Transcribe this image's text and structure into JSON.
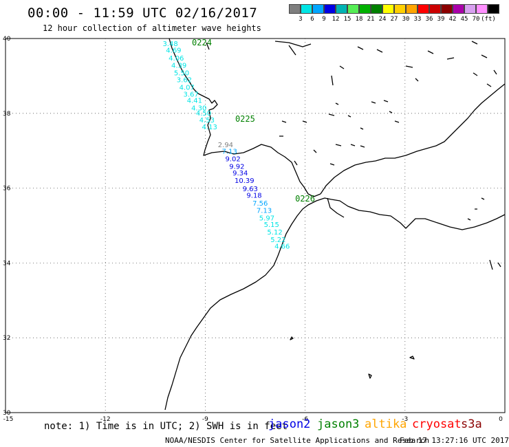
{
  "header": {
    "title": "00:00 - 11:59 UTC 02/16/2017",
    "subtitle": "12 hour collection of altimeter wave heights"
  },
  "colorbar": {
    "swatches": [
      "#7f7f7f",
      "#00e5e5",
      "#00a6ff",
      "#0000e5",
      "#00b3b3",
      "#55ee55",
      "#00b200",
      "#008000",
      "#ffff00",
      "#ffd000",
      "#ffa500",
      "#ff0000",
      "#cc0000",
      "#8b0000",
      "#aa00aa",
      "#d8a0f0",
      "#ff90ff",
      "#000000"
    ],
    "labels": [
      "3",
      "6",
      "9",
      "12",
      "15",
      "18",
      "21",
      "24",
      "27",
      "30",
      "33",
      "36",
      "39",
      "42",
      "45",
      "70"
    ],
    "unit": "(ft)"
  },
  "map": {
    "lon_min": -15,
    "lon_max": 0,
    "lat_min": 30,
    "lat_max": 40,
    "x_ticks": [
      {
        "lon": -15,
        "label": "-15"
      },
      {
        "lon": -12,
        "label": "-12"
      },
      {
        "lon": -9,
        "label": "-9"
      },
      {
        "lon": -6,
        "label": "-6"
      },
      {
        "lon": -3,
        "label": "-3"
      },
      {
        "lon": 0,
        "label": "0"
      }
    ],
    "y_ticks": [
      {
        "lat": 40,
        "label": "40"
      },
      {
        "lat": 38,
        "label": "38"
      },
      {
        "lat": 36,
        "label": "36"
      },
      {
        "lat": 34,
        "label": "34"
      },
      {
        "lat": 32,
        "label": "32"
      },
      {
        "lat": 30,
        "label": "30"
      }
    ],
    "pass_times": [
      {
        "lon": -9.4,
        "lat": 39.82,
        "text": "0224",
        "color": "#008000"
      },
      {
        "lon": -8.1,
        "lat": 37.78,
        "text": "0225",
        "color": "#008000"
      },
      {
        "lon": -6.3,
        "lat": 35.64,
        "text": "0226",
        "color": "#008000"
      }
    ],
    "swh": [
      {
        "lon": -10.28,
        "lat": 39.8,
        "text": "3.48",
        "color": "#00e5e5"
      },
      {
        "lon": -10.18,
        "lat": 39.62,
        "text": "4.69",
        "color": "#00e5e5"
      },
      {
        "lon": -10.1,
        "lat": 39.41,
        "text": "4.06",
        "color": "#00e5e5"
      },
      {
        "lon": -10.02,
        "lat": 39.22,
        "text": "4.39",
        "color": "#00e5e5"
      },
      {
        "lon": -9.94,
        "lat": 39.02,
        "text": "5.50",
        "color": "#00e5e5"
      },
      {
        "lon": -9.86,
        "lat": 38.83,
        "text": "3.62",
        "color": "#00e5e5"
      },
      {
        "lon": -9.78,
        "lat": 38.63,
        "text": "4.07",
        "color": "#00e5e5"
      },
      {
        "lon": -9.66,
        "lat": 38.45,
        "text": "3.67",
        "color": "#00e5e5"
      },
      {
        "lon": -9.55,
        "lat": 38.28,
        "text": "4.41",
        "color": "#00e5e5"
      },
      {
        "lon": -9.42,
        "lat": 38.08,
        "text": "4.30",
        "color": "#00e5e5"
      },
      {
        "lon": -9.28,
        "lat": 37.94,
        "text": "4.50",
        "color": "#00e5e5"
      },
      {
        "lon": -9.18,
        "lat": 37.76,
        "text": "4.53",
        "color": "#00e5e5"
      },
      {
        "lon": -9.1,
        "lat": 37.57,
        "text": "4.13",
        "color": "#00e5e5"
      },
      {
        "lon": -8.62,
        "lat": 37.1,
        "text": "2.94",
        "color": "#7f7f7f"
      },
      {
        "lon": -8.5,
        "lat": 36.92,
        "text": "7.13",
        "color": "#00a6ff"
      },
      {
        "lon": -8.4,
        "lat": 36.72,
        "text": "9.02",
        "color": "#0000e5"
      },
      {
        "lon": -8.28,
        "lat": 36.52,
        "text": "9.92",
        "color": "#0000e5"
      },
      {
        "lon": -8.18,
        "lat": 36.34,
        "text": "9.34",
        "color": "#0000e5"
      },
      {
        "lon": -8.12,
        "lat": 36.14,
        "text": "10.39",
        "color": "#0000e5"
      },
      {
        "lon": -7.88,
        "lat": 35.92,
        "text": "9.63",
        "color": "#0000e5"
      },
      {
        "lon": -7.76,
        "lat": 35.74,
        "text": "9.18",
        "color": "#0000e5"
      },
      {
        "lon": -7.58,
        "lat": 35.53,
        "text": "7.56",
        "color": "#00a6ff"
      },
      {
        "lon": -7.46,
        "lat": 35.34,
        "text": "7.13",
        "color": "#00a6ff"
      },
      {
        "lon": -7.38,
        "lat": 35.14,
        "text": "5.97",
        "color": "#00e5e5"
      },
      {
        "lon": -7.24,
        "lat": 34.96,
        "text": "5.15",
        "color": "#00e5e5"
      },
      {
        "lon": -7.14,
        "lat": 34.76,
        "text": "5.12",
        "color": "#00e5e5"
      },
      {
        "lon": -7.04,
        "lat": 34.56,
        "text": "5.22",
        "color": "#00e5e5"
      },
      {
        "lon": -6.92,
        "lat": 34.38,
        "text": "4.66",
        "color": "#00e5e5"
      }
    ]
  },
  "footer": {
    "note": "note: 1) Time is in UTC; 2) SWH is in feet",
    "satellites": [
      {
        "name": "jason2",
        "color": "#0000e5"
      },
      {
        "name": "jason3",
        "color": "#008000"
      },
      {
        "name": "altika",
        "color": "#ffa500"
      },
      {
        "name": "cryosat",
        "color": "#ff0000"
      },
      {
        "name": "s3a",
        "color": "#8b0000"
      }
    ],
    "credit": "NOAA/NESDIS Center for Satellite Applications and Research",
    "timestamp": "Feb 17 13:27:16 UTC 2017"
  }
}
